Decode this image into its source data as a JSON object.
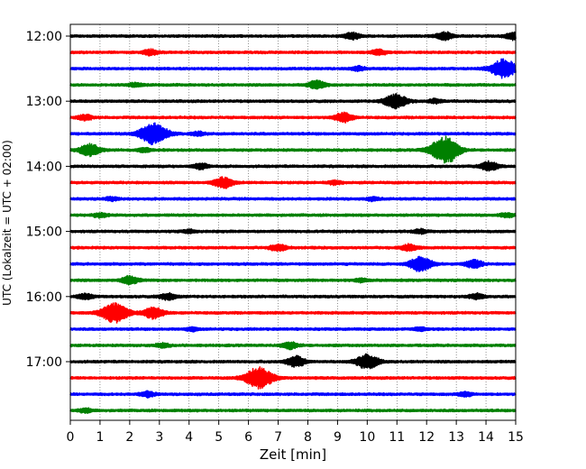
{
  "chart_data": {
    "type": "line",
    "title": "",
    "xlabel": "Zeit  [min]",
    "ylabel": "UTC (Lokalzeit = UTC + 02:00)",
    "xlim": [
      0,
      15
    ],
    "x_ticks": [
      0,
      1,
      2,
      3,
      4,
      5,
      6,
      7,
      8,
      9,
      10,
      11,
      12,
      13,
      14,
      15
    ],
    "grid": "vertical dotted",
    "y_ticks": [
      "12:00",
      "13:00",
      "14:00",
      "15:00",
      "16:00",
      "17:00"
    ],
    "trace_interval_min": 15,
    "color_cycle": [
      "#000000",
      "#ff0000",
      "#0000ff",
      "#008000"
    ],
    "traces": [
      {
        "start": "12:00",
        "color": "#000000",
        "events": [
          {
            "t": 9.5,
            "a": 0.25
          },
          {
            "t": 12.6,
            "a": 0.3
          },
          {
            "t": 14.9,
            "a": 0.25
          }
        ]
      },
      {
        "start": "12:15",
        "color": "#ff0000",
        "events": [
          {
            "t": 2.7,
            "a": 0.2
          },
          {
            "t": 10.4,
            "a": 0.2
          }
        ]
      },
      {
        "start": "12:30",
        "color": "#0000ff",
        "events": [
          {
            "t": 9.7,
            "a": 0.15
          },
          {
            "t": 14.6,
            "a": 0.7
          }
        ]
      },
      {
        "start": "12:45",
        "color": "#008000",
        "events": [
          {
            "t": 2.2,
            "a": 0.15
          },
          {
            "t": 8.3,
            "a": 0.3
          }
        ]
      },
      {
        "start": "13:00",
        "color": "#000000",
        "events": [
          {
            "t": 10.95,
            "a": 0.55
          },
          {
            "t": 12.3,
            "a": 0.15
          }
        ]
      },
      {
        "start": "13:15",
        "color": "#ff0000",
        "events": [
          {
            "t": 0.5,
            "a": 0.2
          },
          {
            "t": 9.2,
            "a": 0.35
          }
        ]
      },
      {
        "start": "13:30",
        "color": "#0000ff",
        "events": [
          {
            "t": 2.8,
            "a": 0.8
          },
          {
            "t": 4.3,
            "a": 0.15
          }
        ]
      },
      {
        "start": "13:45",
        "color": "#008000",
        "events": [
          {
            "t": 0.65,
            "a": 0.45
          },
          {
            "t": 12.5,
            "a": 0.7
          },
          {
            "t": 12.8,
            "a": 0.5
          },
          {
            "t": 2.5,
            "a": 0.15
          }
        ]
      },
      {
        "start": "14:00",
        "color": "#000000",
        "events": [
          {
            "t": 4.4,
            "a": 0.2
          },
          {
            "t": 14.1,
            "a": 0.35
          }
        ]
      },
      {
        "start": "14:15",
        "color": "#ff0000",
        "events": [
          {
            "t": 5.15,
            "a": 0.4
          },
          {
            "t": 8.9,
            "a": 0.15
          }
        ]
      },
      {
        "start": "14:30",
        "color": "#0000ff",
        "events": [
          {
            "t": 1.4,
            "a": 0.12
          },
          {
            "t": 10.2,
            "a": 0.12
          }
        ]
      },
      {
        "start": "14:45",
        "color": "#008000",
        "events": [
          {
            "t": 1.0,
            "a": 0.15
          },
          {
            "t": 14.7,
            "a": 0.15
          }
        ]
      },
      {
        "start": "15:00",
        "color": "#000000",
        "events": [
          {
            "t": 11.8,
            "a": 0.15
          },
          {
            "t": 4.0,
            "a": 0.12
          }
        ]
      },
      {
        "start": "15:15",
        "color": "#ff0000",
        "events": [
          {
            "t": 7.0,
            "a": 0.25
          },
          {
            "t": 11.4,
            "a": 0.25
          }
        ]
      },
      {
        "start": "15:30",
        "color": "#0000ff",
        "events": [
          {
            "t": 11.8,
            "a": 0.55
          },
          {
            "t": 13.6,
            "a": 0.3
          }
        ]
      },
      {
        "start": "15:45",
        "color": "#008000",
        "events": [
          {
            "t": 2.0,
            "a": 0.3
          },
          {
            "t": 9.8,
            "a": 0.12
          }
        ]
      },
      {
        "start": "16:00",
        "color": "#000000",
        "events": [
          {
            "t": 0.5,
            "a": 0.2
          },
          {
            "t": 3.3,
            "a": 0.25
          },
          {
            "t": 13.7,
            "a": 0.2
          }
        ]
      },
      {
        "start": "16:15",
        "color": "#ff0000",
        "events": [
          {
            "t": 1.5,
            "a": 0.75
          },
          {
            "t": 2.8,
            "a": 0.45
          }
        ]
      },
      {
        "start": "16:30",
        "color": "#0000ff",
        "events": [
          {
            "t": 4.1,
            "a": 0.12
          },
          {
            "t": 11.8,
            "a": 0.12
          }
        ]
      },
      {
        "start": "16:45",
        "color": "#008000",
        "events": [
          {
            "t": 3.1,
            "a": 0.15
          },
          {
            "t": 7.4,
            "a": 0.25
          }
        ]
      },
      {
        "start": "17:00",
        "color": "#000000",
        "events": [
          {
            "t": 7.6,
            "a": 0.4
          },
          {
            "t": 10.0,
            "a": 0.55
          }
        ]
      },
      {
        "start": "17:15",
        "color": "#ff0000",
        "events": [
          {
            "t": 6.35,
            "a": 0.8
          }
        ]
      },
      {
        "start": "17:30",
        "color": "#0000ff",
        "events": [
          {
            "t": 2.6,
            "a": 0.2
          },
          {
            "t": 13.3,
            "a": 0.15
          }
        ]
      },
      {
        "start": "17:45",
        "color": "#008000",
        "events": [
          {
            "t": 0.5,
            "a": 0.15
          }
        ]
      }
    ]
  }
}
